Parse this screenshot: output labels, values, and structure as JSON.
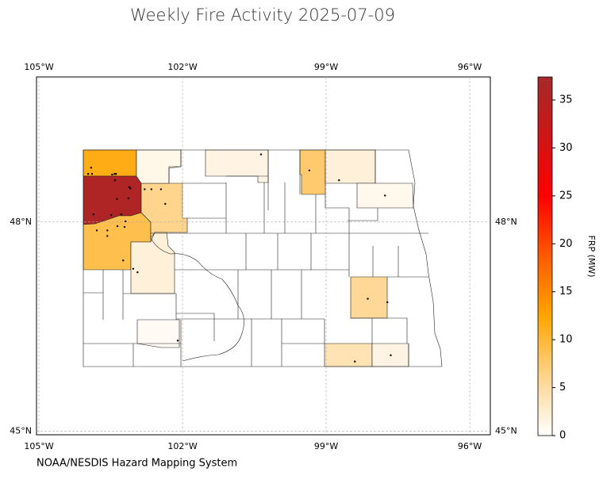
{
  "chart_data": {
    "type": "map",
    "title": "Weekly Fire Activity 2025-07-09",
    "source": "NOAA/NESDIS Hazard Mapping System",
    "xlim": [
      -105.05,
      -95.57
    ],
    "ylim": [
      44.95,
      50.08
    ],
    "xticks": [
      {
        "value": -105,
        "label": "105°W"
      },
      {
        "value": -102,
        "label": "102°W"
      },
      {
        "value": -99,
        "label": "99°W"
      },
      {
        "value": -96,
        "label": "96°W"
      }
    ],
    "yticks": [
      {
        "value": 45,
        "label": "45°N"
      },
      {
        "value": 48,
        "label": "48°N"
      }
    ],
    "grid": true,
    "colorbar": {
      "label": "FRP (MW)",
      "lim": [
        0,
        37.4
      ],
      "ticks": [
        0,
        5,
        10,
        15,
        20,
        25,
        30,
        35
      ],
      "colors": [
        "#ffffff",
        "#ffd38a",
        "#ffa500",
        "#ff5a00",
        "#ff0000",
        "#d01515",
        "#a52a2a"
      ]
    },
    "regions": {
      "values": [
        11.5,
        36,
        9,
        6,
        1.2,
        2,
        1.5,
        7.5,
        2,
        1,
        5.5,
        0.6,
        4,
        1.5
      ]
    },
    "fires": {
      "color": "#000000",
      "x": [
        -103.91,
        -103.97,
        -103.89,
        -103.47,
        -103.42,
        -103.39,
        -103.41,
        -103.11,
        -103.09,
        -103.37,
        -103.13,
        -103.86,
        -103.49,
        -103.28,
        -102.65,
        -102.45,
        -102.36,
        -102.79,
        -103.57,
        -103.57,
        -103.79,
        -103.36,
        -103.21,
        -103.24,
        -103.19,
        -102.94,
        -103.03,
        -100.36,
        -99.35,
        -98.73,
        -97.77,
        -98.13,
        -97.72,
        -98.4,
        -97.65,
        -102.1
      ],
      "y": [
        48.78,
        48.69,
        48.69,
        48.68,
        48.69,
        48.69,
        48.6,
        48.5,
        48.48,
        48.33,
        48.34,
        48.11,
        48.1,
        48.11,
        48.47,
        48.47,
        48.26,
        48.47,
        47.88,
        47.8,
        47.88,
        47.94,
        47.93,
        47.45,
        48.01,
        47.28,
        47.33,
        48.97,
        48.74,
        48.6,
        48.38,
        46.9,
        46.85,
        46.0,
        46.09,
        46.3
      ]
    }
  }
}
